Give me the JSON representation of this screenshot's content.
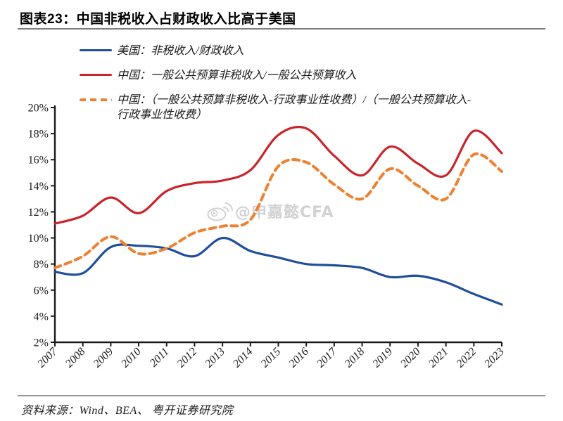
{
  "title": "图表23：中国非税收入占财政收入比高于美国",
  "source": "资料来源：Wind、BEA、 粤开证券研究院",
  "watermark": {
    "icon": "weibo-icon",
    "text": "@申嘉懿CFA",
    "color": "#d2d2d2"
  },
  "colors": {
    "us_line": "#1f4e9b",
    "china_line": "#c9242b",
    "china_adj_line": "#ee8130",
    "axis": "#1a1a1a",
    "watermark": "#d2d2d2"
  },
  "legend": [
    {
      "label": "美国：非税收入/财政收入",
      "style": "solid",
      "color": "#1f4e9b"
    },
    {
      "label": "中国：一般公共预算非税收入/一般公共预算收入",
      "style": "solid",
      "color": "#c9242b"
    },
    {
      "label": "中国：（一般公共预算非税收入-行政事业性收费）/（一般公共预算收入-行政事业性收费）",
      "style": "dashed",
      "color": "#ee8130"
    }
  ],
  "chart_data": {
    "type": "line",
    "title": "图表23：中国非税收入占财政收入比高于美国",
    "x": [
      2007,
      2008,
      2009,
      2010,
      2011,
      2012,
      2013,
      2014,
      2015,
      2016,
      2017,
      2018,
      2019,
      2020,
      2021,
      2022,
      2023
    ],
    "series": [
      {
        "name": "美国：非税收入/财政收入",
        "color": "#1f4e9b",
        "dash": false,
        "values": [
          7.4,
          7.3,
          9.3,
          9.4,
          9.2,
          8.6,
          10.0,
          9.0,
          8.5,
          8.0,
          7.9,
          7.7,
          7.0,
          7.1,
          6.6,
          5.7,
          4.9
        ]
      },
      {
        "name": "中国：一般公共预算非税收入/一般公共预算收入",
        "color": "#c9242b",
        "dash": false,
        "values": [
          11.1,
          11.7,
          13.1,
          11.9,
          13.6,
          14.2,
          14.4,
          15.2,
          17.9,
          18.4,
          16.3,
          14.8,
          17.0,
          15.7,
          14.8,
          18.2,
          16.5
        ]
      },
      {
        "name": "中国：（一般公共预算非税收入-行政事业性收费）/（一般公共预算收入-行政事业性收费）",
        "color": "#ee8130",
        "dash": true,
        "values": [
          7.7,
          8.6,
          10.1,
          8.8,
          9.2,
          10.4,
          10.9,
          11.4,
          15.5,
          15.8,
          14.1,
          13.0,
          15.3,
          14.0,
          13.0,
          16.4,
          15.1
        ]
      }
    ],
    "ylim": [
      2,
      20
    ],
    "ytick_step": 2,
    "yticks": [
      "2%",
      "4%",
      "6%",
      "8%",
      "10%",
      "12%",
      "14%",
      "16%",
      "18%",
      "20%"
    ],
    "ylabel_format": "percent",
    "grid": false,
    "legend_position": "top-left",
    "smoothed": true
  }
}
